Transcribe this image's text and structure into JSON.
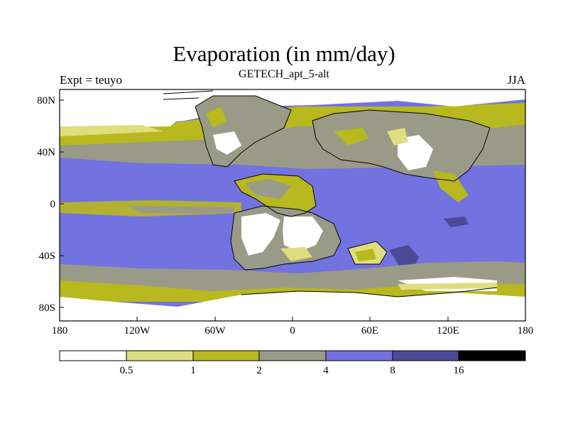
{
  "title": "Evaporation (in mm/day)",
  "subtitle": "GETECH_apt_5-alt",
  "left_label": "Expt = teuyo",
  "right_label": "JJA",
  "map": {
    "lon_ticks": [
      "180",
      "120W",
      "60W",
      "0",
      "60E",
      "120E",
      "180"
    ],
    "lat_ticks": [
      "80N",
      "40N",
      "0",
      "40S",
      "80S"
    ]
  },
  "colorbar": {
    "labels": [
      "0.5",
      "1",
      "2",
      "4",
      "8",
      "16"
    ],
    "colors": [
      "#ffffff",
      "#dede7f",
      "#b8b81f",
      "#9a9a88",
      "#7272e0",
      "#4a4a96",
      "#000000"
    ]
  },
  "palette": {
    "ocean": "#7272e0",
    "ocean_high": "#4a4a96",
    "land_gray": "#9a9a88",
    "land_olive": "#b8b81f",
    "land_pale": "#dede7f",
    "land_white": "#ffffff"
  }
}
